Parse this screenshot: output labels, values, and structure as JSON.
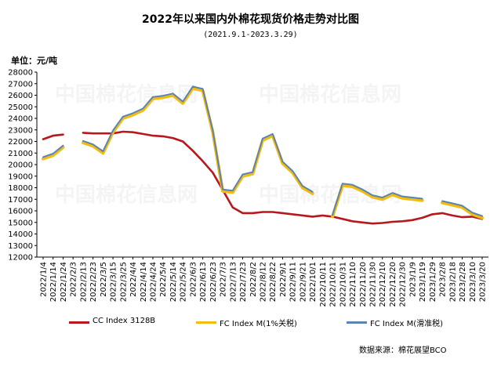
{
  "title": "2022年以来国内外棉花现货价格走势对比图",
  "subtitle": "(2021.9.1-2023.3.29)",
  "unit_label": "单位：元/吨",
  "source": "数据来源：棉花展望BCO",
  "watermark": "中国棉花信息网",
  "chart_data": {
    "type": "line",
    "ylim": [
      12000,
      28000
    ],
    "yticks": [
      12000,
      13000,
      14000,
      15000,
      16000,
      17000,
      18000,
      19000,
      20000,
      21000,
      22000,
      23000,
      24000,
      25000,
      26000,
      27000,
      28000
    ],
    "categories": [
      "2022/1/4",
      "2022/1/14",
      "2022/1/24",
      "2022/2/3",
      "2022/2/13",
      "2022/2/23",
      "2022/3/5",
      "2022/3/15",
      "2022/3/25",
      "2022/4/4",
      "2022/4/14",
      "2022/4/24",
      "2022/5/4",
      "2022/5/14",
      "2022/5/24",
      "2022/6/3",
      "2022/6/13",
      "2022/6/23",
      "2022/7/3",
      "2022/7/13",
      "2022/7/23",
      "2022/8/2",
      "2022/8/12",
      "2022/8/22",
      "2022/9/1",
      "2022/9/11",
      "2022/9/21",
      "2022/10/1",
      "2022/10/11",
      "2022/10/21",
      "2022/10/31",
      "2022/11/10",
      "2022/11/20",
      "2022/11/30",
      "2022/12/10",
      "2022/12/20",
      "2022/12/30",
      "2023/1/9",
      "2023/1/19",
      "2023/1/29",
      "2023/2/8",
      "2023/2/18",
      "2023/2/28",
      "2023/3/10",
      "2023/3/20"
    ],
    "series": [
      {
        "name": "CC Index 3128B",
        "color": "#b8171d",
        "values": [
          22200,
          22500,
          22600,
          null,
          22750,
          22700,
          22700,
          22700,
          22850,
          22800,
          22650,
          22500,
          22450,
          22300,
          22000,
          21200,
          20300,
          19300,
          17800,
          16300,
          15800,
          15800,
          15900,
          15900,
          15800,
          15700,
          15600,
          15500,
          15600,
          15500,
          15300,
          15100,
          15000,
          14900,
          14950,
          15050,
          15100,
          15200,
          15400,
          15700,
          15800,
          15600,
          15450,
          15500,
          15300
        ]
      },
      {
        "name": "FC Index M(1%关税)",
        "color": "#f2bc12",
        "values": [
          20500,
          20800,
          21500,
          null,
          21900,
          21600,
          21000,
          22800,
          24000,
          24300,
          24700,
          25700,
          25800,
          26000,
          25300,
          26600,
          26400,
          22800,
          17700,
          17600,
          19000,
          19200,
          22100,
          22500,
          20100,
          19300,
          18000,
          17500,
          null,
          15500,
          18200,
          18100,
          17700,
          17200,
          17000,
          17400,
          17100,
          17000,
          16900,
          null,
          16700,
          16500,
          16300,
          15700,
          15400
        ]
      },
      {
        "name": "FC Index M(滑准税)",
        "color": "#5b84b0",
        "values": [
          20650,
          20950,
          21650,
          null,
          22050,
          21750,
          21150,
          22950,
          24150,
          24450,
          24850,
          25850,
          25950,
          26150,
          25450,
          26750,
          26550,
          22950,
          17850,
          17750,
          19150,
          19350,
          22250,
          22650,
          20250,
          19450,
          18150,
          17650,
          null,
          15650,
          18350,
          18250,
          17850,
          17350,
          17150,
          17550,
          17250,
          17150,
          17050,
          null,
          16850,
          16650,
          16450,
          15850,
          15550
        ]
      }
    ]
  }
}
